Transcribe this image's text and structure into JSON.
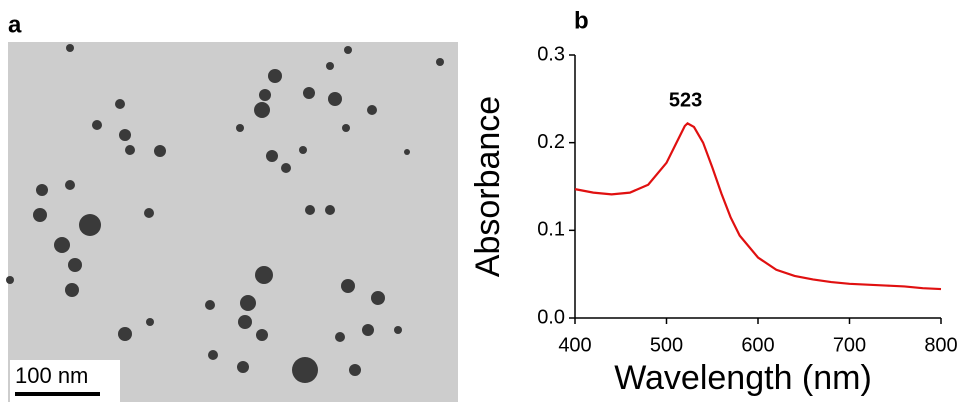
{
  "panel_labels": [
    "a",
    "b"
  ],
  "scale_bar": "100 nm",
  "chart_data": {
    "type": "line",
    "x_label": "Wavelength (nm)",
    "y_label": "Absorbance",
    "annotations": [
      {
        "text": "523"
      }
    ],
    "xlim": [
      400,
      800
    ],
    "xticks": [
      400,
      500,
      600,
      700,
      800
    ],
    "ylim": [
      0,
      0.3
    ],
    "yticks": [
      {
        "value": 0,
        "label": "0.0"
      },
      0.1,
      0.2,
      0.3
    ],
    "series": [
      {
        "color": "#e01010",
        "x": [
          400,
          420,
          440,
          460,
          480,
          500,
          510,
          520,
          523,
          530,
          540,
          550,
          560,
          570,
          580,
          600,
          620,
          640,
          660,
          680,
          700,
          720,
          740,
          760,
          780,
          800
        ],
        "values": [
          0.147,
          0.143,
          0.141,
          0.143,
          0.152,
          0.177,
          0.198,
          0.219,
          0.222,
          0.218,
          0.2,
          0.172,
          0.142,
          0.115,
          0.094,
          0.069,
          0.055,
          0.048,
          0.044,
          0.041,
          0.039,
          0.038,
          0.037,
          0.036,
          0.034,
          0.033
        ]
      }
    ]
  }
}
